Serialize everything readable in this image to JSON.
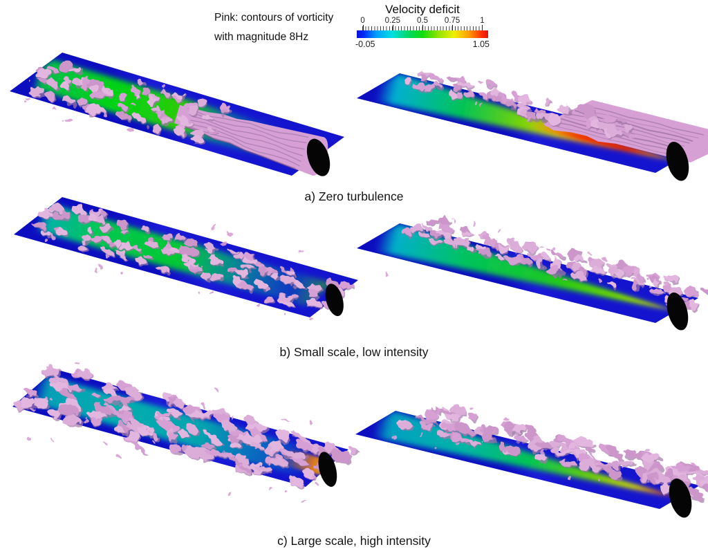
{
  "note": {
    "line1": "Pink: contours of vorticity",
    "line2": "with magnitude 8Hz"
  },
  "colorbar": {
    "title": "Velocity deficit",
    "ticks": [
      "0",
      "0.25",
      "0.5",
      "0.75",
      "1"
    ],
    "min_label": "-0.05",
    "max_label": "1.05",
    "range": [
      -0.05,
      1.05
    ],
    "colormap": "blue-cyan-green-yellow-red rainbow"
  },
  "captions": [
    "a) Zero turbulence",
    "b) Small scale, low intensity",
    "c) Large scale, high intensity"
  ],
  "panels": [
    {
      "id": "a-left",
      "row": "a",
      "view": "horizontal slice + pink vorticity isosurface",
      "features": "smooth wake tube at rotor breaking up downstream, green deficit core"
    },
    {
      "id": "a-right",
      "row": "a",
      "view": "vertical slice + pink vorticity isosurface",
      "features": "strong red velocity-deficit region behind rotor decaying downstream"
    },
    {
      "id": "b-left",
      "row": "b",
      "view": "horizontal slice + pink vorticity isosurface",
      "features": "fine-grained turbulence along full wake, cyan-green core"
    },
    {
      "id": "b-right",
      "row": "b",
      "view": "vertical slice + pink vorticity isosurface",
      "features": "green deficit core decaying to cyan, turbulence on wake edge"
    },
    {
      "id": "c-left",
      "row": "c",
      "view": "horizontal slice + pink vorticity isosurface",
      "features": "large-scale turbulent structures scattered around plane, teal core"
    },
    {
      "id": "c-right",
      "row": "c",
      "view": "vertical slice + pink vorticity isosurface",
      "features": "red-orange deficit at rotor decaying to cyan, large structures"
    }
  ],
  "colors": {
    "vorticity_isosurface_pink": "#d7a1d5",
    "plane_blue": "#1414cf",
    "rotor_disk_black": "#050505",
    "text": "#111111"
  }
}
